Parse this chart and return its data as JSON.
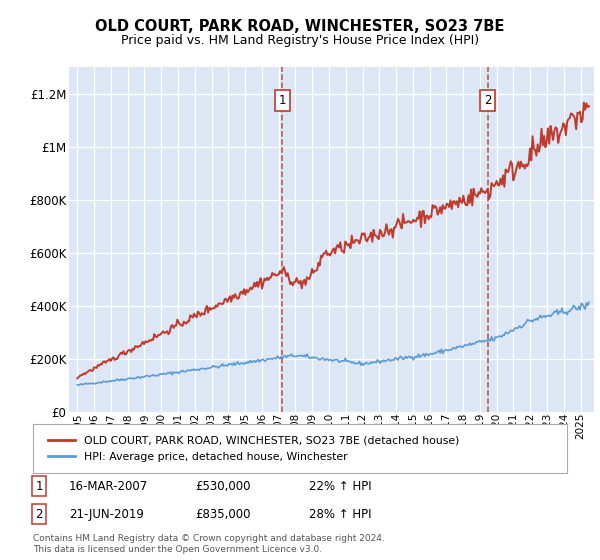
{
  "title": "OLD COURT, PARK ROAD, WINCHESTER, SO23 7BE",
  "subtitle": "Price paid vs. HM Land Registry's House Price Index (HPI)",
  "plot_bg_color": "#dce6f5",
  "ylim": [
    0,
    1300000
  ],
  "yticks": [
    0,
    200000,
    400000,
    600000,
    800000,
    1000000,
    1200000
  ],
  "ytick_labels": [
    "£0",
    "£200K",
    "£400K",
    "£600K",
    "£800K",
    "£1M",
    "£1.2M"
  ],
  "legend_entries": [
    "OLD COURT, PARK ROAD, WINCHESTER, SO23 7BE (detached house)",
    "HPI: Average price, detached house, Winchester"
  ],
  "sale_info": [
    {
      "label": "1",
      "date": "16-MAR-2007",
      "price": "£530,000",
      "hpi": "22% ↑ HPI"
    },
    {
      "label": "2",
      "date": "21-JUN-2019",
      "price": "£835,000",
      "hpi": "28% ↑ HPI"
    }
  ],
  "footer": "Contains HM Land Registry data © Crown copyright and database right 2024.\nThis data is licensed under the Open Government Licence v3.0.",
  "red_line_color": "#c0392b",
  "blue_line_color": "#5b9bd5",
  "vline_color": "#c0392b",
  "annotation_box_color": "#c0392b",
  "sale_year1": 2007.21,
  "sale_year2": 2019.47
}
